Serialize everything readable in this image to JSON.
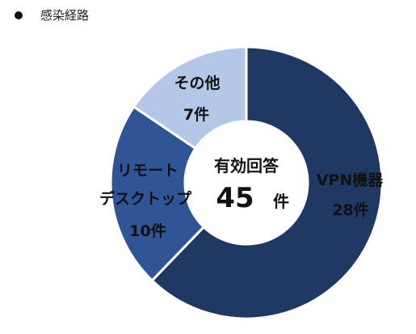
{
  "header": {
    "title": "感染経路"
  },
  "chart_data": {
    "type": "pie",
    "donut": true,
    "center": {
      "title": "有効回答",
      "total": "45",
      "unit": "件"
    },
    "slices": [
      {
        "name": "VPN機器",
        "value": 28,
        "value_label": "28件",
        "color": "#203864"
      },
      {
        "name": "リモートデスクトップ",
        "name_lines": [
          "リモート",
          "デスクトップ"
        ],
        "value": 10,
        "value_label": "10件",
        "color": "#2f5597"
      },
      {
        "name": "その他",
        "value": 7,
        "value_label": "7件",
        "color": "#b4c7e7"
      }
    ]
  }
}
